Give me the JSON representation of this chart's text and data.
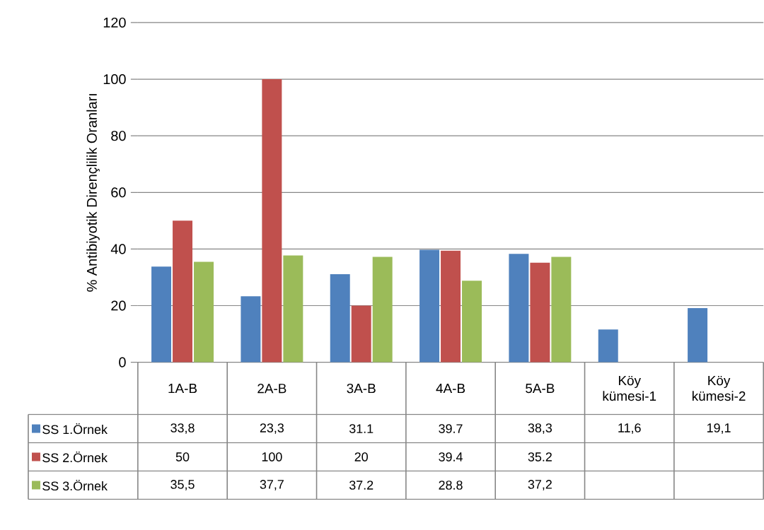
{
  "chart_data": {
    "type": "bar",
    "ylabel": "% Antibiyotik Dirençlilik Oranları",
    "categories": [
      "1A-B",
      "2A-B",
      "3A-B",
      "4A-B",
      "5A-B",
      "Köy kümesi-1",
      "Köy kümesi-2"
    ],
    "series": [
      {
        "name": "SS 1.Örnek",
        "color": "#4f81bd",
        "values": [
          33.8,
          23.3,
          31.1,
          39.7,
          38.3,
          11.6,
          19.1
        ],
        "value_labels": [
          "33,8",
          "23,3",
          "31.1",
          "39.7",
          "38,3",
          "11,6",
          "19,1"
        ]
      },
      {
        "name": "SS 2.Örnek",
        "color": "#c0504d",
        "values": [
          50,
          100,
          20,
          39.4,
          35.2,
          null,
          null
        ],
        "value_labels": [
          "50",
          "100",
          "20",
          "39.4",
          "35.2",
          null,
          null
        ]
      },
      {
        "name": "SS 3.Örnek",
        "color": "#9bbb59",
        "values": [
          35.5,
          37.7,
          37.2,
          28.8,
          37.2,
          null,
          null
        ],
        "value_labels": [
          "35,5",
          "37,7",
          "37.2",
          "28.8",
          "37,2",
          null,
          null
        ]
      }
    ],
    "ylim": [
      0,
      120
    ],
    "yticks": [
      0,
      20,
      40,
      60,
      80,
      100,
      120
    ],
    "grid": "y",
    "legend": "bottom"
  }
}
